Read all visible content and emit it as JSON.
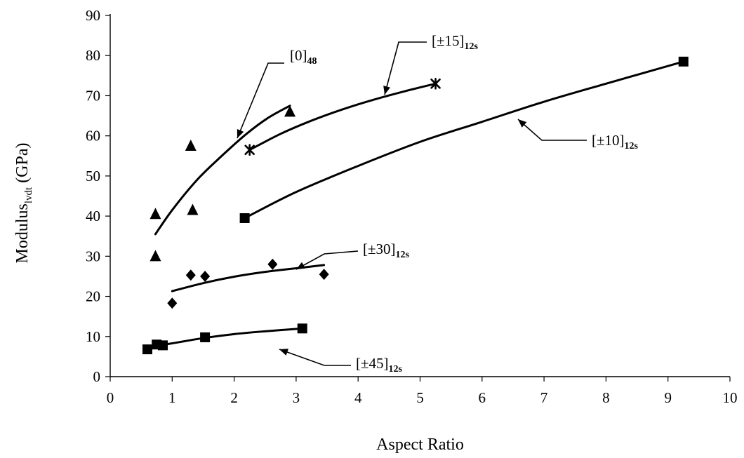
{
  "chart_data": {
    "type": "scatter",
    "title": "",
    "xlabel": "Aspect Ratio",
    "ylabel": "Modulus",
    "ylabel_sub": "lvdt",
    "ylabel_unit": " (GPa)",
    "xlim": [
      0,
      10
    ],
    "ylim": [
      0,
      90
    ],
    "xticks": [
      0,
      1,
      2,
      3,
      4,
      5,
      6,
      7,
      8,
      9,
      10
    ],
    "yticks": [
      0,
      10,
      20,
      30,
      40,
      50,
      60,
      70,
      80,
      90
    ],
    "grid": false,
    "legend": "none",
    "series": [
      {
        "name": "[0]48",
        "label_main": "[0]",
        "label_sub": "48",
        "marker": "triangle",
        "points": [
          [
            0.73,
            40.5
          ],
          [
            0.73,
            30.0
          ],
          [
            1.3,
            57.5
          ],
          [
            1.33,
            41.5
          ],
          [
            2.9,
            66.0
          ]
        ],
        "fit": [
          [
            0.73,
            35.5
          ],
          [
            1.0,
            41.5
          ],
          [
            1.4,
            49.0
          ],
          [
            1.8,
            55.0
          ],
          [
            2.2,
            60.5
          ],
          [
            2.55,
            64.5
          ],
          [
            2.9,
            67.5
          ]
        ]
      },
      {
        "name": "[±15]12s",
        "label_main": "[±15]",
        "label_sub": "12s",
        "marker": "star",
        "points": [
          [
            2.25,
            56.5
          ],
          [
            5.25,
            73.0
          ]
        ],
        "fit": [
          [
            2.25,
            56.5
          ],
          [
            2.75,
            60.5
          ],
          [
            3.25,
            63.8
          ],
          [
            3.75,
            66.6
          ],
          [
            4.25,
            69.0
          ],
          [
            4.75,
            71.1
          ],
          [
            5.25,
            73.0
          ]
        ]
      },
      {
        "name": "[±10]12s",
        "label_main": "[±10]",
        "label_sub": "12s",
        "marker": "square",
        "points": [
          [
            2.17,
            39.5
          ],
          [
            9.25,
            78.5
          ]
        ],
        "fit": [
          [
            2.17,
            39.5
          ],
          [
            3.0,
            46.0
          ],
          [
            4.0,
            52.5
          ],
          [
            5.0,
            58.5
          ],
          [
            6.0,
            63.5
          ],
          [
            7.0,
            68.5
          ],
          [
            8.0,
            73.0
          ],
          [
            9.25,
            78.5
          ]
        ]
      },
      {
        "name": "[±30]12s",
        "label_main": "[±30]",
        "label_sub": "12s",
        "marker": "diamond",
        "points": [
          [
            1.0,
            18.3
          ],
          [
            1.3,
            25.3
          ],
          [
            1.53,
            25.0
          ],
          [
            2.62,
            28.0
          ],
          [
            3.45,
            25.5
          ]
        ],
        "fit": [
          [
            1.0,
            21.3
          ],
          [
            1.5,
            23.3
          ],
          [
            2.0,
            24.9
          ],
          [
            2.5,
            26.1
          ],
          [
            3.0,
            27.0
          ],
          [
            3.45,
            27.8
          ]
        ]
      },
      {
        "name": "[±45]12s",
        "label_main": "[±45]",
        "label_sub": "12s",
        "marker": "square",
        "points": [
          [
            0.6,
            6.8
          ],
          [
            0.75,
            8.0
          ],
          [
            0.85,
            7.8
          ],
          [
            1.53,
            9.8
          ],
          [
            3.1,
            12.0
          ]
        ],
        "fit": [
          [
            0.6,
            7.3
          ],
          [
            1.0,
            8.3
          ],
          [
            1.5,
            9.6
          ],
          [
            2.0,
            10.6
          ],
          [
            2.5,
            11.3
          ],
          [
            3.1,
            12.0
          ]
        ]
      }
    ]
  }
}
